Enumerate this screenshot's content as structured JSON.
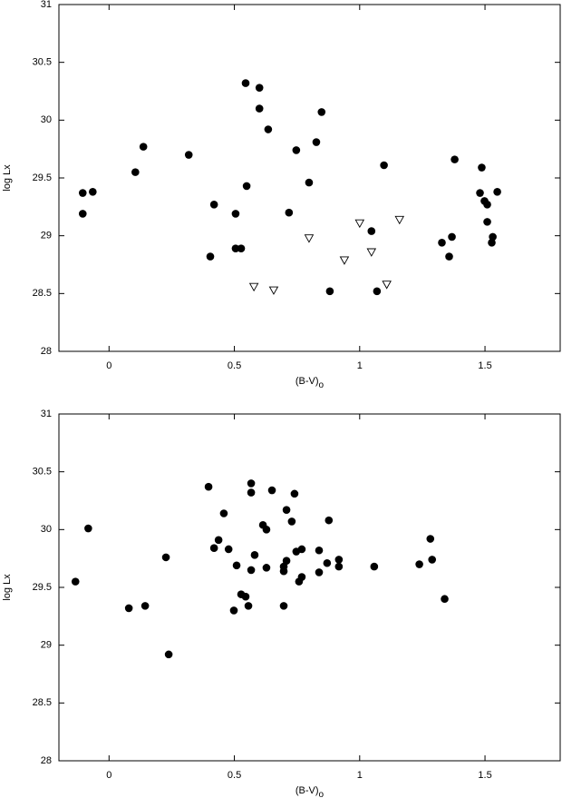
{
  "chart_data": [
    {
      "type": "scatter",
      "x_label": "(B-V)",
      "x_label_subscript": "o",
      "y_label": "log Lx",
      "xlim": [
        -0.2,
        1.8
      ],
      "ylim": [
        28,
        31
      ],
      "xticks": [
        0,
        0.5,
        1,
        1.5
      ],
      "yticks": [
        28,
        28.5,
        29,
        29.5,
        30,
        30.5,
        31
      ],
      "series": [
        {
          "marker": "circle",
          "color": "#000000",
          "x": [
            -0.105,
            -0.105,
            -0.065,
            0.105,
            0.137,
            0.318,
            0.545,
            0.6,
            0.6,
            0.635,
            0.848,
            0.747,
            0.827,
            1.097,
            0.798,
            0.419,
            0.549,
            0.505,
            0.718,
            0.404,
            0.505,
            0.527,
            1.047,
            0.881,
            1.069,
            1.379,
            1.487,
            1.48,
            1.498,
            1.509,
            1.549,
            1.509,
            1.368,
            1.328,
            1.357,
            1.531,
            1.527
          ],
          "values": [
            29.37,
            29.19,
            29.38,
            29.55,
            29.77,
            29.7,
            30.32,
            30.28,
            30.1,
            29.92,
            30.07,
            29.74,
            29.81,
            29.61,
            29.46,
            29.27,
            29.43,
            29.19,
            29.2,
            28.82,
            28.89,
            28.89,
            29.04,
            28.52,
            28.52,
            29.66,
            29.59,
            29.37,
            29.3,
            29.27,
            29.38,
            29.12,
            28.99,
            28.94,
            28.82,
            28.99,
            28.94
          ]
        },
        {
          "marker": "triangle-down",
          "color": "#000000",
          "x": [
            0.578,
            0.657,
            0.798,
            0.939,
            1.0,
            1.047,
            1.159,
            1.108
          ],
          "values": [
            28.56,
            28.53,
            28.98,
            28.79,
            29.11,
            28.86,
            29.14,
            28.58
          ]
        }
      ]
    },
    {
      "type": "scatter",
      "x_label": "(B-V)",
      "x_label_subscript": "o",
      "y_label": "log Lx",
      "xlim": [
        -0.2,
        1.8
      ],
      "ylim": [
        28,
        31
      ],
      "xticks": [
        0,
        0.5,
        1,
        1.5
      ],
      "yticks": [
        28,
        28.5,
        29,
        29.5,
        30,
        30.5,
        31
      ],
      "series": [
        {
          "marker": "circle",
          "color": "#000000",
          "x": [
            -0.134,
            -0.083,
            0.079,
            0.144,
            0.227,
            0.238,
            0.397,
            0.419,
            0.437,
            0.458,
            0.477,
            0.498,
            0.509,
            0.527,
            0.545,
            0.556,
            0.567,
            0.567,
            0.567,
            0.581,
            0.614,
            0.628,
            0.628,
            0.65,
            0.697,
            0.697,
            0.708,
            0.708,
            0.697,
            0.729,
            0.74,
            0.747,
            0.758,
            0.769,
            0.769,
            0.838,
            0.838,
            0.87,
            0.877,
            0.917,
            0.917,
            1.058,
            1.238,
            1.282,
            1.289,
            1.339
          ],
          "values": [
            29.55,
            30.01,
            29.32,
            29.34,
            29.76,
            28.92,
            30.37,
            29.84,
            29.91,
            30.14,
            29.83,
            29.3,
            29.69,
            29.44,
            29.42,
            29.34,
            29.65,
            30.4,
            30.32,
            29.78,
            30.04,
            30.0,
            29.67,
            30.34,
            29.64,
            29.68,
            29.73,
            30.17,
            29.34,
            30.07,
            30.31,
            29.81,
            29.55,
            29.59,
            29.83,
            29.63,
            29.82,
            29.71,
            30.08,
            29.74,
            29.68,
            29.68,
            29.7,
            29.92,
            29.74,
            29.4
          ]
        }
      ]
    }
  ]
}
